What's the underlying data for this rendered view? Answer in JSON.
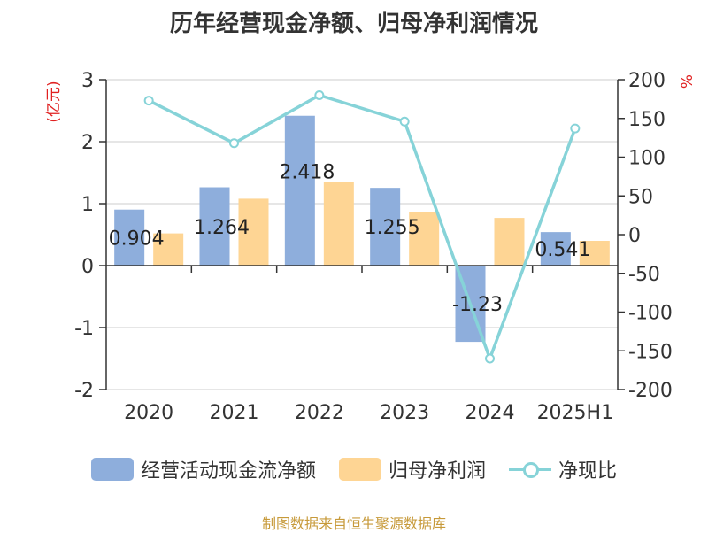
{
  "title": "历年经营现金净额、归母净利润情况",
  "source": "制图数据来自恒生聚源数据库",
  "chart_data": {
    "type": "bar",
    "categories": [
      "2020",
      "2021",
      "2022",
      "2023",
      "2024",
      "2025H1"
    ],
    "series": [
      {
        "name": "经营活动现金流净额",
        "type": "bar",
        "axis": "left",
        "color": "#8eaedc",
        "values": [
          0.904,
          1.264,
          2.418,
          1.255,
          -1.23,
          0.541
        ]
      },
      {
        "name": "归母净利润",
        "type": "bar",
        "axis": "left",
        "color": "#fed594",
        "values": [
          0.52,
          1.08,
          1.35,
          0.86,
          0.77,
          0.4
        ]
      },
      {
        "name": "净现比",
        "type": "line",
        "axis": "right",
        "color": "#86d3d8",
        "values": [
          173,
          118,
          180,
          146,
          -160,
          137
        ]
      }
    ],
    "data_labels": [
      "0.904",
      "1.264",
      "2.418",
      "1.255",
      "-1.23",
      "0.541"
    ],
    "ylabel_left": "(亿元)",
    "ylabel_right": "%",
    "ylim_left": [
      -2,
      3
    ],
    "ylim_right": [
      -200,
      200
    ],
    "yticks_left": [
      "-2",
      "-1",
      "0",
      "1",
      "2",
      "3"
    ],
    "yticks_right": [
      "-200",
      "-150",
      "-100",
      "-50",
      "0",
      "50",
      "100",
      "150",
      "200"
    ],
    "grid": true,
    "legend_position": "bottom"
  }
}
